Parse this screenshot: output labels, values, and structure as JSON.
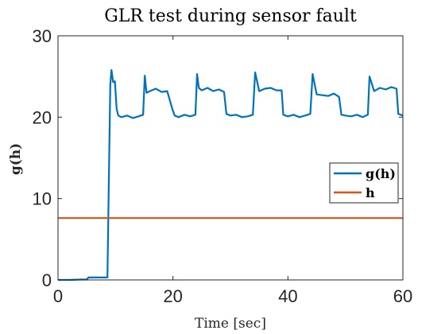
{
  "chart_data": {
    "type": "line",
    "title": "GLR test during sensor fault",
    "xlabel": "Time [sec]",
    "ylabel": "g(h)",
    "xlim": [
      0,
      60
    ],
    "ylim": [
      0,
      30
    ],
    "xticks": [
      0,
      20,
      40,
      60
    ],
    "yticks": [
      0,
      10,
      20,
      30
    ],
    "grid": false,
    "legend_position": "right",
    "series": [
      {
        "name": "g(h)",
        "color": "#0072BD",
        "x": [
          0,
          2,
          4,
          5,
          5.3,
          7,
          8.6,
          8.9,
          9.1,
          9.3,
          9.6,
          9.9,
          10.2,
          10.5,
          11,
          12,
          13,
          14,
          14.8,
          15.1,
          15.4,
          16,
          17,
          18,
          19,
          19.9,
          20.3,
          21,
          22,
          23,
          23.9,
          24.2,
          24.5,
          25,
          26,
          27,
          28,
          28.9,
          29.3,
          30,
          31,
          32,
          33,
          33.9,
          34.3,
          35,
          36,
          37,
          38,
          38.9,
          39.2,
          40,
          41,
          42,
          43,
          43.9,
          44.3,
          45,
          46,
          47,
          48,
          48.9,
          49.3,
          50,
          51,
          52,
          53,
          53.9,
          54.2,
          55,
          56,
          57,
          58,
          58.9,
          59.2,
          60
        ],
        "y": [
          0,
          0,
          0.05,
          0.05,
          0.3,
          0.3,
          0.3,
          15,
          24,
          25.8,
          24.3,
          24.4,
          21,
          20.2,
          20,
          20.2,
          19.9,
          20.1,
          20.3,
          25.1,
          23,
          23.2,
          23.5,
          23.1,
          23.2,
          21,
          20.2,
          20,
          20.3,
          20.1,
          20.3,
          25.3,
          23.6,
          23.3,
          23.6,
          23.2,
          23.4,
          23.1,
          20.4,
          20.2,
          20.3,
          20,
          20.1,
          20.3,
          25.5,
          23.2,
          23.5,
          23.6,
          23.3,
          23.3,
          20.3,
          20.1,
          20.3,
          20,
          20.2,
          20.4,
          25.3,
          22.8,
          22.7,
          22.6,
          22.9,
          22.5,
          20.3,
          20.2,
          20.1,
          20.3,
          20,
          20.3,
          25,
          23.2,
          23.6,
          23.4,
          23.7,
          23.5,
          20.4,
          20.2
        ]
      },
      {
        "name": "h",
        "color": "#D95319",
        "x": [
          0,
          60
        ],
        "y": [
          7.6,
          7.6
        ]
      }
    ]
  }
}
